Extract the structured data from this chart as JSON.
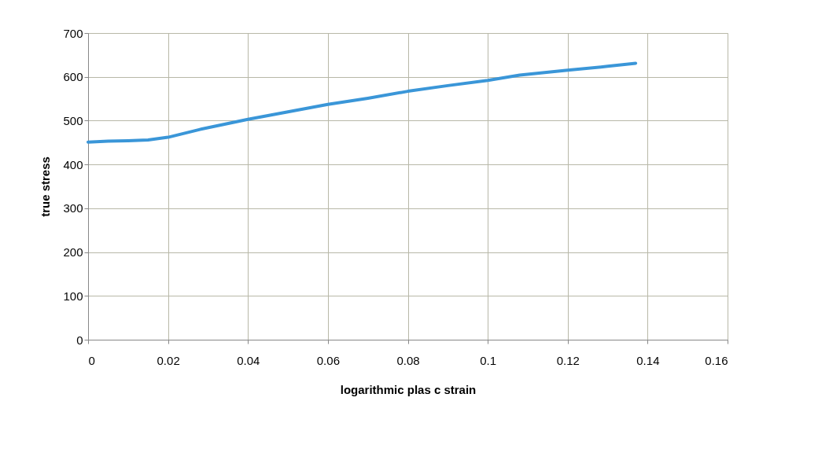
{
  "chart_data": {
    "type": "line",
    "xlabel": "logarithmic plas  c strain",
    "ylabel": "true stress",
    "x": [
      0,
      0.005,
      0.01,
      0.015,
      0.02,
      0.028,
      0.04,
      0.05,
      0.06,
      0.07,
      0.08,
      0.09,
      0.1,
      0.108,
      0.12,
      0.13,
      0.137
    ],
    "series": [
      {
        "color": "#3a96d8",
        "values": [
          451,
          453,
          454,
          456,
          462,
          480,
          503,
          520,
          537,
          551,
          567,
          580,
          592,
          604,
          615,
          624,
          631
        ]
      }
    ],
    "xlim": [
      0,
      0.16
    ],
    "xticks": [
      0,
      0.02,
      0.04,
      0.06,
      0.08,
      0.1,
      0.12,
      0.14,
      0.16
    ],
    "ylim": [
      0,
      700
    ],
    "yticks": [
      0,
      100,
      200,
      300,
      400,
      500,
      600,
      700
    ],
    "grid": true,
    "legend": false,
    "marker": "none",
    "line_style": "solid"
  }
}
